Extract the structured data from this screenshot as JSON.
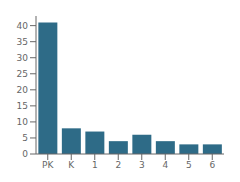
{
  "chart_data": {
    "type": "bar",
    "categories": [
      "PK",
      "K",
      "1",
      "2",
      "3",
      "4",
      "5",
      "6"
    ],
    "values": [
      41,
      8,
      7,
      4,
      6,
      4,
      3,
      3
    ],
    "color": "#2e6b87",
    "ylim": [
      0,
      43
    ],
    "yticks": [
      0,
      5,
      10,
      15,
      20,
      25,
      30,
      35,
      40
    ],
    "grid": false
  }
}
